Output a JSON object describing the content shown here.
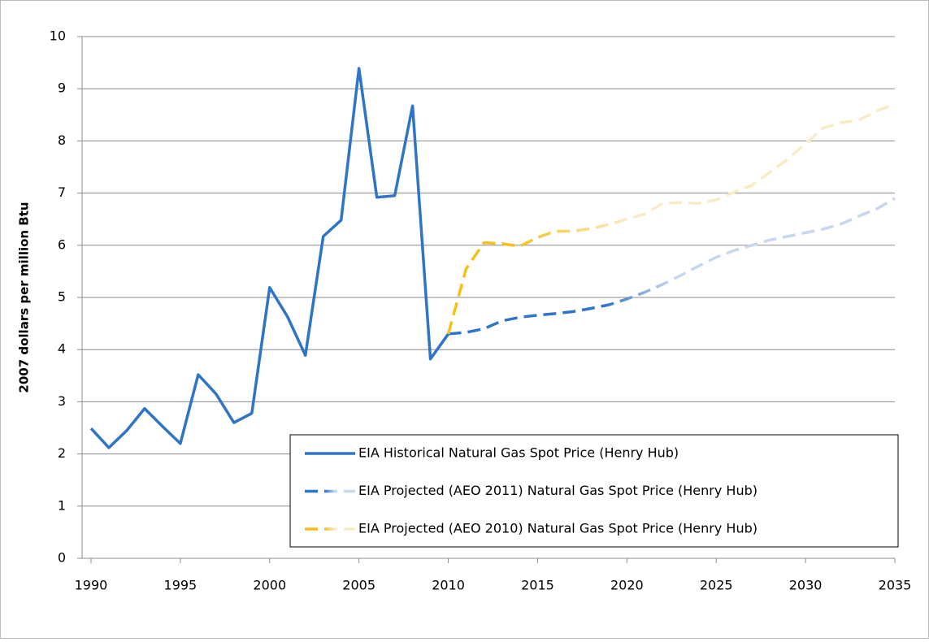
{
  "chart_data": {
    "type": "line",
    "y_label": "2007 dollars per million Btu",
    "xlim": [
      1989.5,
      2035
    ],
    "ylim": [
      0,
      10
    ],
    "xticks": [
      1990,
      1995,
      2000,
      2005,
      2010,
      2015,
      2020,
      2025,
      2030,
      2035
    ],
    "yticks": [
      0,
      1,
      2,
      3,
      4,
      5,
      6,
      7,
      8,
      9,
      10
    ],
    "grid": true,
    "series": [
      {
        "name": "EIA Historical Natural Gas Spot Price (Henry Hub)",
        "color": "#2e75c6",
        "dashed": false,
        "x": [
          1990,
          1991,
          1992,
          1993,
          1994,
          1995,
          1996,
          1997,
          1998,
          1999,
          2000,
          2001,
          2002,
          2003,
          2004,
          2005,
          2006,
          2007,
          2008,
          2009,
          2010
        ],
        "values": [
          2.49,
          2.12,
          2.45,
          2.87,
          2.53,
          2.2,
          3.52,
          3.15,
          2.6,
          2.78,
          5.19,
          4.63,
          3.89,
          6.17,
          6.48,
          9.39,
          6.92,
          6.95,
          8.67,
          3.82,
          4.3
        ]
      },
      {
        "name": "EIA Projected (AEO 2011) Natural Gas Spot Price (Henry Hub)",
        "color": "#2e75c6",
        "fade_color": "#c9d7ee",
        "dashed": true,
        "x": [
          2010,
          2011,
          2012,
          2013,
          2014,
          2015,
          2016,
          2017,
          2018,
          2019,
          2020,
          2021,
          2022,
          2023,
          2024,
          2025,
          2026,
          2027,
          2028,
          2029,
          2030,
          2031,
          2032,
          2033,
          2034,
          2035
        ],
        "values": [
          4.3,
          4.33,
          4.4,
          4.55,
          4.62,
          4.66,
          4.69,
          4.73,
          4.79,
          4.86,
          4.97,
          5.1,
          5.25,
          5.42,
          5.6,
          5.77,
          5.9,
          6.0,
          6.1,
          6.17,
          6.24,
          6.31,
          6.41,
          6.56,
          6.7,
          6.9
        ]
      },
      {
        "name": "EIA Projected (AEO 2010) Natural Gas Spot Price (Henry Hub)",
        "color": "#f5c118",
        "fade_color": "#f8ecc6",
        "dashed": true,
        "x": [
          2010,
          2011,
          2012,
          2013,
          2014,
          2015,
          2016,
          2017,
          2018,
          2019,
          2020,
          2021,
          2022,
          2023,
          2024,
          2025,
          2026,
          2027,
          2028,
          2029,
          2030,
          2031,
          2032,
          2033,
          2034,
          2035
        ],
        "values": [
          4.3,
          5.55,
          6.05,
          6.03,
          5.98,
          6.15,
          6.27,
          6.27,
          6.32,
          6.4,
          6.5,
          6.6,
          6.8,
          6.82,
          6.8,
          6.87,
          7.02,
          7.15,
          7.4,
          7.65,
          7.95,
          8.25,
          8.35,
          8.4,
          8.58,
          8.7
        ]
      }
    ]
  }
}
